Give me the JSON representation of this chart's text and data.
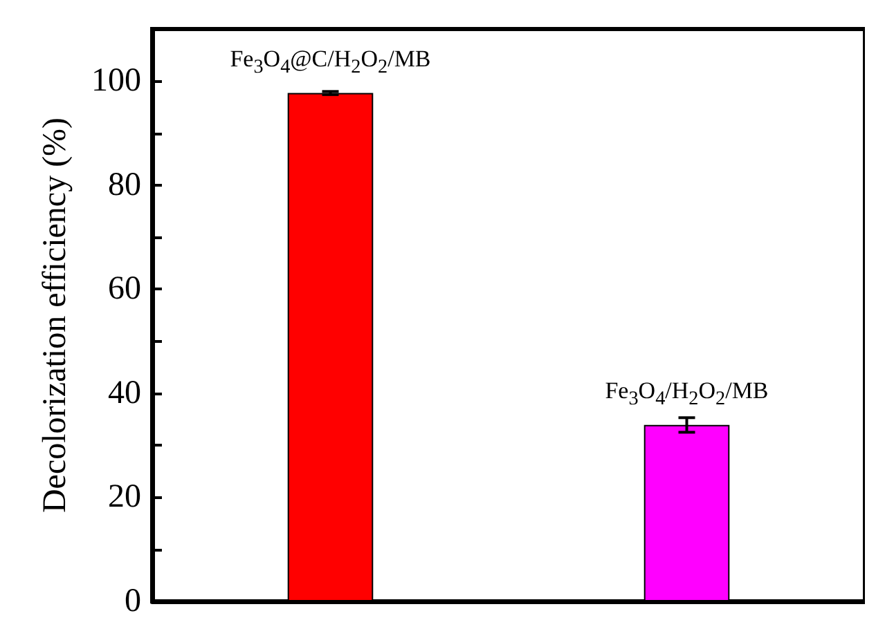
{
  "chart_data": {
    "type": "bar",
    "ylabel": "Decolorization efficiency (%)",
    "categories": [
      null,
      null
    ],
    "values": [
      97.7,
      33.9
    ],
    "colors": [
      "#ff0000",
      "#ff00ff"
    ],
    "errors": [
      0.3,
      1.4
    ],
    "ylim": [
      0,
      110
    ],
    "yticks": [
      0,
      {
        "value": 10,
        "label": null
      },
      20,
      {
        "value": 30,
        "label": null
      },
      40,
      {
        "value": 50,
        "label": null
      },
      60,
      {
        "value": 70,
        "label": null
      },
      80,
      {
        "value": 90,
        "label": null
      },
      100
    ],
    "annotations": [
      "Fe$_{3}$O$_{4}$@C/H$_{2}$O$_{2}$/MB",
      "Fe$_{3}$O$_{4}$/H$_{2}$O$_{2}$/MB"
    ],
    "grid": false
  }
}
